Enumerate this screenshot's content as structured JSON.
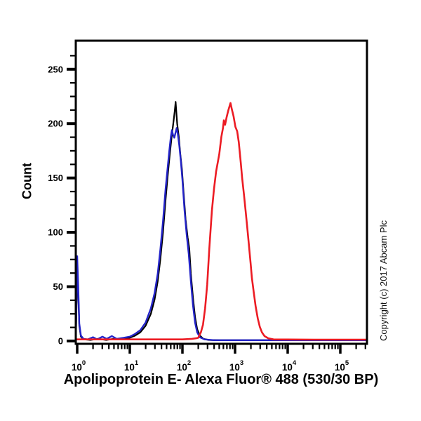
{
  "page": {
    "background": "#ffffff"
  },
  "labels": {
    "title": "Apolipoprotein E- Alexa Fluor® 488 (530/30 BP)",
    "ylabel": "Count",
    "copyright": "Copyright (c) 2017 Abcam Plc"
  },
  "chart_data": {
    "type": "line",
    "subtype": "flow-cytometry-overlay-histogram",
    "title": "Apolipoprotein E- Alexa Fluor® 488 (530/30 BP)",
    "xlabel": "Apolipoprotein E- Alexa Fluor® 488 (530/30 BP)",
    "ylabel": "Count",
    "grid": false,
    "legend": "none",
    "x_axis": {
      "scale": "log10",
      "domain_log10": [
        -0.027,
        5.507
      ],
      "decade_ticks": [
        0,
        1,
        2,
        3,
        4,
        5
      ],
      "tick_label_base": "10",
      "minor_ticks": "log positions 2-9 per decade"
    },
    "y_axis": {
      "range": [
        0,
        275
      ],
      "major_ticks": [
        0,
        50,
        100,
        150,
        200,
        250
      ],
      "minor_step": 12.5
    },
    "point_format": "[log10(fluorescence intensity), count]",
    "series": [
      {
        "name": "black",
        "color": "#000000",
        "width": 2.2,
        "points": [
          [
            -0.027,
            0
          ],
          [
            -0.01,
            40
          ],
          [
            0.0,
            72
          ],
          [
            0.02,
            45
          ],
          [
            0.04,
            14
          ],
          [
            0.07,
            4
          ],
          [
            0.12,
            1.5
          ],
          [
            0.25,
            1
          ],
          [
            0.4,
            2
          ],
          [
            0.55,
            1
          ],
          [
            0.7,
            2
          ],
          [
            0.85,
            1.5
          ],
          [
            1.0,
            3
          ],
          [
            1.1,
            5
          ],
          [
            1.2,
            8
          ],
          [
            1.3,
            14
          ],
          [
            1.4,
            25
          ],
          [
            1.47,
            38
          ],
          [
            1.53,
            55
          ],
          [
            1.58,
            75
          ],
          [
            1.63,
            100
          ],
          [
            1.68,
            130
          ],
          [
            1.72,
            152
          ],
          [
            1.76,
            172
          ],
          [
            1.8,
            190
          ],
          [
            1.83,
            202
          ],
          [
            1.855,
            212
          ],
          [
            1.87,
            220
          ],
          [
            1.885,
            210
          ],
          [
            1.9,
            200
          ],
          [
            1.93,
            188
          ],
          [
            1.96,
            172
          ],
          [
            1.99,
            158
          ],
          [
            2.02,
            138
          ],
          [
            2.06,
            112
          ],
          [
            2.1,
            95
          ],
          [
            2.13,
            85
          ],
          [
            2.16,
            62
          ],
          [
            2.2,
            40
          ],
          [
            2.24,
            22
          ],
          [
            2.28,
            11
          ],
          [
            2.33,
            5
          ],
          [
            2.4,
            2
          ],
          [
            2.5,
            1
          ],
          [
            2.7,
            0.7
          ],
          [
            3.0,
            0.7
          ],
          [
            4.0,
            0.7
          ],
          [
            5.5,
            0.7
          ]
        ]
      },
      {
        "name": "blue",
        "color": "#2323c8",
        "width": 2.4,
        "points": [
          [
            -0.027,
            0
          ],
          [
            -0.01,
            45
          ],
          [
            0.0,
            78
          ],
          [
            0.02,
            50
          ],
          [
            0.04,
            16
          ],
          [
            0.07,
            5
          ],
          [
            0.12,
            2
          ],
          [
            0.2,
            1.5
          ],
          [
            0.3,
            3.5
          ],
          [
            0.38,
            1.5
          ],
          [
            0.48,
            4
          ],
          [
            0.56,
            2
          ],
          [
            0.66,
            4.5
          ],
          [
            0.75,
            2
          ],
          [
            0.88,
            3
          ],
          [
            1.0,
            4
          ],
          [
            1.1,
            6.5
          ],
          [
            1.2,
            10
          ],
          [
            1.3,
            17
          ],
          [
            1.4,
            30
          ],
          [
            1.47,
            44
          ],
          [
            1.53,
            62
          ],
          [
            1.58,
            84
          ],
          [
            1.63,
            110
          ],
          [
            1.68,
            140
          ],
          [
            1.72,
            160
          ],
          [
            1.75,
            175
          ],
          [
            1.78,
            188
          ],
          [
            1.8,
            194
          ],
          [
            1.82,
            190
          ],
          [
            1.845,
            187
          ],
          [
            1.87,
            192
          ],
          [
            1.89,
            196
          ],
          [
            1.91,
            191
          ],
          [
            1.94,
            180
          ],
          [
            1.97,
            165
          ],
          [
            2.0,
            148
          ],
          [
            2.04,
            120
          ],
          [
            2.08,
            98
          ],
          [
            2.12,
            80
          ],
          [
            2.16,
            55
          ],
          [
            2.2,
            33
          ],
          [
            2.24,
            17
          ],
          [
            2.28,
            8
          ],
          [
            2.33,
            3.5
          ],
          [
            2.42,
            1.5
          ],
          [
            2.6,
            0.8
          ],
          [
            3.0,
            0.8
          ],
          [
            4.0,
            0.8
          ],
          [
            5.5,
            0.8
          ]
        ]
      },
      {
        "name": "red",
        "color": "#ec1c24",
        "width": 2.6,
        "points": [
          [
            -0.027,
            1.5
          ],
          [
            1.0,
            1.5
          ],
          [
            2.0,
            1.5
          ],
          [
            2.18,
            2
          ],
          [
            2.26,
            2.5
          ],
          [
            2.3,
            3
          ],
          [
            2.35,
            8
          ],
          [
            2.39,
            15
          ],
          [
            2.43,
            30
          ],
          [
            2.47,
            52
          ],
          [
            2.51,
            85
          ],
          [
            2.56,
            120
          ],
          [
            2.6,
            140
          ],
          [
            2.64,
            156
          ],
          [
            2.7,
            172
          ],
          [
            2.74,
            188
          ],
          [
            2.77,
            196
          ],
          [
            2.787,
            203
          ],
          [
            2.81,
            199
          ],
          [
            2.84,
            206
          ],
          [
            2.87,
            212
          ],
          [
            2.913,
            219
          ],
          [
            2.94,
            213
          ],
          [
            2.97,
            207
          ],
          [
            3.007,
            197
          ],
          [
            3.04,
            193
          ],
          [
            3.07,
            183
          ],
          [
            3.11,
            163
          ],
          [
            3.135,
            150
          ],
          [
            3.17,
            134
          ],
          [
            3.2,
            120
          ],
          [
            3.23,
            105
          ],
          [
            3.26,
            90
          ],
          [
            3.295,
            72
          ],
          [
            3.32,
            58
          ],
          [
            3.355,
            45
          ],
          [
            3.39,
            32
          ],
          [
            3.43,
            21
          ],
          [
            3.47,
            13
          ],
          [
            3.51,
            8
          ],
          [
            3.56,
            4.5
          ],
          [
            3.63,
            2.5
          ],
          [
            3.73,
            1.5
          ],
          [
            4.5,
            1.3
          ],
          [
            5.507,
            1.3
          ]
        ]
      }
    ]
  }
}
